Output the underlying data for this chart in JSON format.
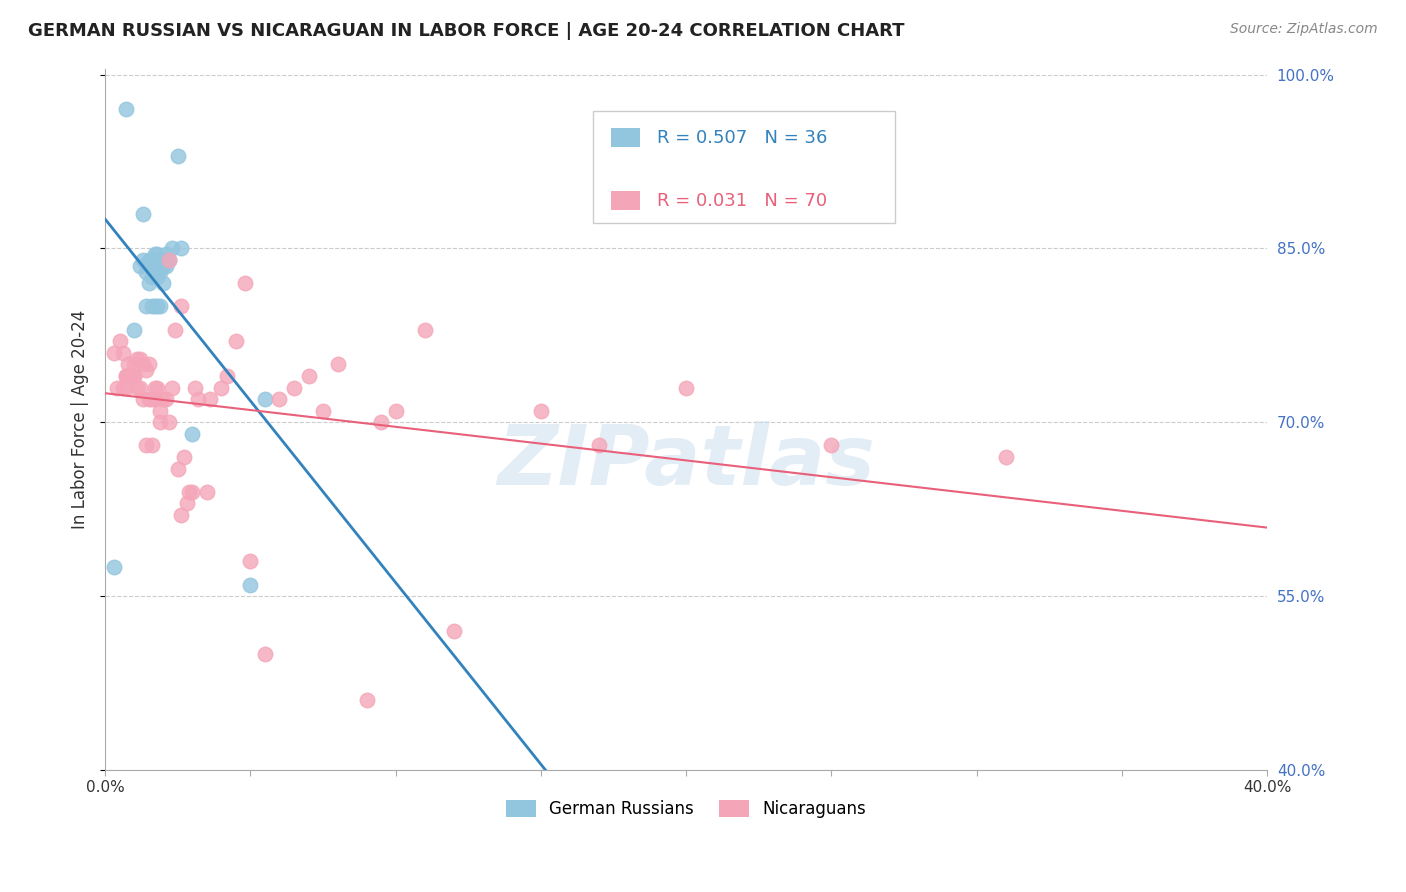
{
  "title": "GERMAN RUSSIAN VS NICARAGUAN IN LABOR FORCE | AGE 20-24 CORRELATION CHART",
  "source": "Source: ZipAtlas.com",
  "ylabel": "In Labor Force | Age 20-24",
  "xlim": [
    0.0,
    0.4
  ],
  "ylim": [
    0.4,
    1.005
  ],
  "ytick_values": [
    0.4,
    0.55,
    0.7,
    0.85,
    1.0
  ],
  "legend_blue_label": "German Russians",
  "legend_pink_label": "Nicaraguans",
  "R_blue": 0.507,
  "N_blue": 36,
  "R_pink": 0.031,
  "N_pink": 70,
  "blue_color": "#92c5de",
  "pink_color": "#f4a6b8",
  "blue_line_color": "#3182bd",
  "pink_line_color": "#e8607a",
  "title_color": "#222222",
  "right_tick_color": "#4472c4",
  "watermark": "ZIPatlas",
  "blue_scatter_x": [
    0.003,
    0.007,
    0.01,
    0.012,
    0.013,
    0.013,
    0.014,
    0.014,
    0.015,
    0.015,
    0.015,
    0.016,
    0.016,
    0.016,
    0.017,
    0.017,
    0.017,
    0.018,
    0.018,
    0.018,
    0.018,
    0.019,
    0.019,
    0.019,
    0.02,
    0.02,
    0.02,
    0.021,
    0.021,
    0.022,
    0.023,
    0.025,
    0.026,
    0.03,
    0.05,
    0.055
  ],
  "blue_scatter_y": [
    0.575,
    0.97,
    0.78,
    0.835,
    0.84,
    0.88,
    0.8,
    0.83,
    0.82,
    0.835,
    0.84,
    0.8,
    0.825,
    0.84,
    0.8,
    0.835,
    0.845,
    0.8,
    0.825,
    0.835,
    0.845,
    0.8,
    0.83,
    0.84,
    0.82,
    0.835,
    0.84,
    0.835,
    0.845,
    0.84,
    0.85,
    0.93,
    0.85,
    0.69,
    0.56,
    0.72
  ],
  "pink_scatter_x": [
    0.003,
    0.004,
    0.005,
    0.006,
    0.006,
    0.007,
    0.007,
    0.007,
    0.008,
    0.008,
    0.009,
    0.009,
    0.01,
    0.01,
    0.01,
    0.011,
    0.011,
    0.012,
    0.012,
    0.013,
    0.013,
    0.014,
    0.014,
    0.015,
    0.015,
    0.016,
    0.016,
    0.017,
    0.017,
    0.018,
    0.019,
    0.019,
    0.02,
    0.021,
    0.022,
    0.022,
    0.023,
    0.024,
    0.025,
    0.026,
    0.026,
    0.027,
    0.028,
    0.029,
    0.03,
    0.031,
    0.032,
    0.035,
    0.036,
    0.04,
    0.042,
    0.045,
    0.048,
    0.05,
    0.055,
    0.06,
    0.065,
    0.07,
    0.075,
    0.08,
    0.09,
    0.095,
    0.1,
    0.11,
    0.12,
    0.15,
    0.17,
    0.2,
    0.25,
    0.31
  ],
  "pink_scatter_y": [
    0.76,
    0.73,
    0.77,
    0.76,
    0.73,
    0.74,
    0.74,
    0.73,
    0.74,
    0.75,
    0.74,
    0.74,
    0.74,
    0.74,
    0.75,
    0.73,
    0.755,
    0.73,
    0.755,
    0.72,
    0.75,
    0.68,
    0.745,
    0.75,
    0.72,
    0.72,
    0.68,
    0.73,
    0.72,
    0.73,
    0.71,
    0.7,
    0.72,
    0.72,
    0.7,
    0.84,
    0.73,
    0.78,
    0.66,
    0.62,
    0.8,
    0.67,
    0.63,
    0.64,
    0.64,
    0.73,
    0.72,
    0.64,
    0.72,
    0.73,
    0.74,
    0.77,
    0.82,
    0.58,
    0.5,
    0.72,
    0.73,
    0.74,
    0.71,
    0.75,
    0.46,
    0.7,
    0.71,
    0.78,
    0.52,
    0.71,
    0.68,
    0.73,
    0.68,
    0.67
  ]
}
